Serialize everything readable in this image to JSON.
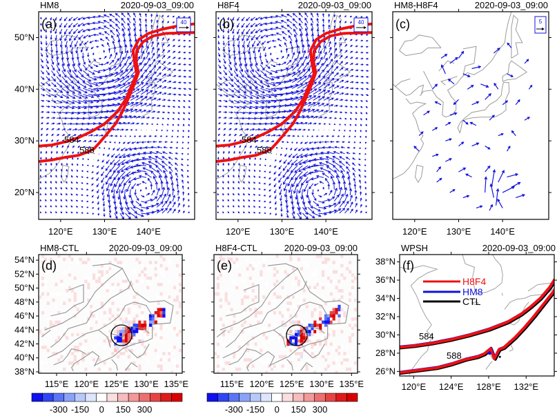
{
  "panels": {
    "a": {
      "name": "HM8",
      "time": "2020-09-03_09:00",
      "tag": "(a)",
      "ref": "40"
    },
    "b": {
      "name": "H8F4",
      "time": "2020-09-03_09:00",
      "tag": "(b)",
      "ref": "40"
    },
    "c": {
      "name": "HM8-H8F4",
      "time": "2020-09-03_09:00",
      "tag": "(c)",
      "ref": "5"
    },
    "d": {
      "name": "HM8-CTL",
      "time": "2020-09-03_09:00",
      "tag": "(d)"
    },
    "e": {
      "name": "H8F4-CTL",
      "time": "2020-09-03_09:00",
      "tag": "(e)"
    },
    "f": {
      "name": "WPSH",
      "time": "2020-09-03_09:00",
      "tag": "(f)"
    }
  },
  "contour_labels": [
    "584",
    "588"
  ],
  "colors": {
    "vector": "#1010dd",
    "contour": "#ee1111",
    "land": "#9a9a9a",
    "ctl": "#000000"
  },
  "chart_data": [
    {
      "panel": "a",
      "type": "vector-field",
      "x_ticks": [
        "120°E",
        "130°E",
        "140°E"
      ],
      "y_ticks": [
        "50°N",
        "40°N",
        "30°N",
        "20°N"
      ],
      "xlim": [
        115,
        150
      ],
      "ylim": [
        15,
        55
      ],
      "contours": [
        584,
        588
      ],
      "cyclone_centers": [
        {
          "lon": 129,
          "lat": 45
        },
        {
          "lon": 138,
          "lat": 21
        }
      ]
    },
    {
      "panel": "b",
      "type": "vector-field",
      "x_ticks": [
        "120°E",
        "130°E",
        "140°E"
      ],
      "xlim": [
        115,
        150
      ],
      "ylim": [
        15,
        55
      ],
      "contours": [
        584,
        588
      ],
      "cyclone_centers": [
        {
          "lon": 129,
          "lat": 45
        },
        {
          "lon": 138,
          "lat": 21
        }
      ]
    },
    {
      "panel": "c",
      "type": "vector-field",
      "x_ticks": [
        "120°E",
        "130°E",
        "140°E"
      ],
      "xlim": [
        115,
        150
      ],
      "ylim": [
        15,
        55
      ]
    },
    {
      "panel": "d",
      "type": "heatmap",
      "x_ticks": [
        "115°E",
        "120°E",
        "125°E",
        "130°E",
        "135°E"
      ],
      "y_ticks": [
        "54°N",
        "52°N",
        "50°N",
        "48°N",
        "46°N",
        "44°N",
        "42°N",
        "40°N",
        "38°N"
      ],
      "xlim": [
        112,
        136
      ],
      "ylim": [
        38,
        55
      ],
      "circle_center": {
        "lon": 126,
        "lat": 43.3
      }
    },
    {
      "panel": "e",
      "type": "heatmap",
      "x_ticks": [
        "115°E",
        "120°E",
        "125°E",
        "130°E",
        "135°E"
      ],
      "xlim": [
        112,
        136
      ],
      "ylim": [
        38,
        55
      ],
      "circle_center": {
        "lon": 126,
        "lat": 43.3
      }
    },
    {
      "panel": "f",
      "type": "line",
      "x_ticks": [
        "120°E",
        "124°E",
        "128°E",
        "132°E"
      ],
      "y_ticks": [
        "38°N",
        "36°N",
        "34°N",
        "32°N",
        "30°N",
        "28°N",
        "26°N"
      ],
      "xlim": [
        118,
        135
      ],
      "ylim": [
        25.5,
        39
      ],
      "legend": [
        "H8F4",
        "HM8",
        "CTL"
      ],
      "legend_position": "top-left",
      "series_colors": [
        "#ee1111",
        "#1010dd",
        "#000000"
      ]
    }
  ],
  "colorbar": {
    "tick_labels": [
      "-300",
      "-150",
      "0",
      "150",
      "300"
    ],
    "colors": [
      "#1010f0",
      "#2f45f5",
      "#5b75f6",
      "#8aa3f8",
      "#b7c9fa",
      "#dde6fc",
      "#ffffff",
      "#fbdede",
      "#f7bcbc",
      "#f29999",
      "#ec7070",
      "#e64444",
      "#e01a1a",
      "#d80000"
    ]
  }
}
